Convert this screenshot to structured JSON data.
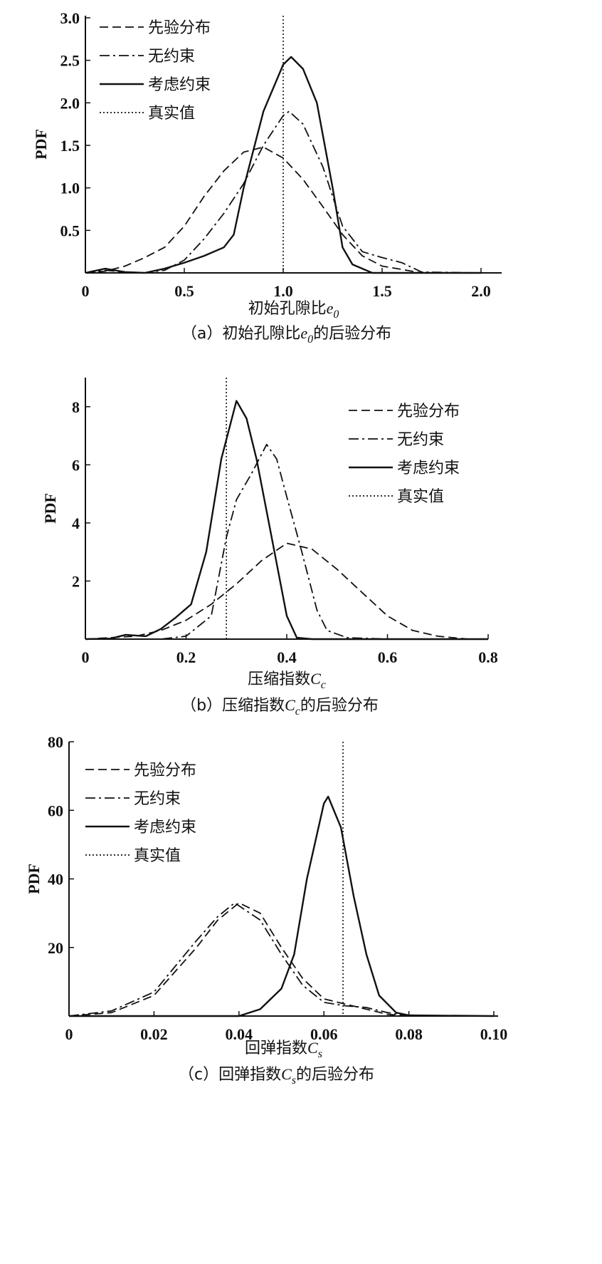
{
  "legend_labels": [
    "先验分布",
    "无约束",
    "考虑约束",
    "真实值"
  ],
  "chart_data": [
    {
      "type": "line",
      "panel": "a",
      "caption": {
        "prefix": "（a）",
        "text": "初始孔隙比",
        "sym": "e",
        "sub": "0",
        "suffix": "的后验分布"
      },
      "xlabel": {
        "text": "初始孔隙比",
        "sym": "e",
        "sub": "0"
      },
      "ylabel": "PDF",
      "xlim": [
        0,
        2.0
      ],
      "ylim": [
        0,
        3.0
      ],
      "xticks": [
        0,
        0.5,
        1.0,
        1.5,
        2.0
      ],
      "xtick_labels": [
        "0",
        "0.5",
        "1.0",
        "1.5",
        "2.0"
      ],
      "yticks": [
        0.5,
        1.0,
        1.5,
        2.0,
        2.5,
        3.0
      ],
      "ytick_labels": [
        "0.5",
        "1.0",
        "1.5",
        "2.0",
        "2.5",
        "3.0"
      ],
      "legend_position": "top-left",
      "true_value": 1.0,
      "series": [
        {
          "name": "先验分布",
          "style": "dashed",
          "x": [
            0,
            0.1,
            0.2,
            0.3,
            0.4,
            0.5,
            0.6,
            0.7,
            0.8,
            0.9,
            1.0,
            1.1,
            1.2,
            1.3,
            1.4,
            1.5,
            1.6,
            1.7,
            2.0
          ],
          "y": [
            0,
            0.02,
            0.08,
            0.18,
            0.3,
            0.55,
            0.9,
            1.2,
            1.42,
            1.48,
            1.35,
            1.1,
            0.78,
            0.45,
            0.2,
            0.08,
            0.04,
            0,
            0
          ]
        },
        {
          "name": "无约束",
          "style": "dashdot",
          "x": [
            0,
            0.1,
            0.2,
            0.3,
            0.4,
            0.5,
            0.6,
            0.7,
            0.8,
            0.9,
            1.0,
            1.03,
            1.1,
            1.2,
            1.3,
            1.4,
            1.5,
            1.6,
            1.7,
            2.0
          ],
          "y": [
            0,
            0.03,
            0.01,
            0,
            0.03,
            0.15,
            0.4,
            0.7,
            1.05,
            1.5,
            1.85,
            1.9,
            1.75,
            1.25,
            0.55,
            0.25,
            0.18,
            0.12,
            0.01,
            0
          ]
        },
        {
          "name": "考虑约束",
          "style": "solid",
          "x": [
            0,
            0.1,
            0.2,
            0.3,
            0.4,
            0.5,
            0.6,
            0.7,
            0.75,
            0.8,
            0.9,
            1.0,
            1.04,
            1.1,
            1.17,
            1.25,
            1.3,
            1.35,
            1.45,
            2.0
          ],
          "y": [
            0,
            0.05,
            0.01,
            0,
            0.05,
            0.12,
            0.2,
            0.3,
            0.45,
            1.0,
            1.9,
            2.45,
            2.54,
            2.4,
            2.0,
            1.0,
            0.3,
            0.1,
            0,
            0
          ]
        }
      ]
    },
    {
      "type": "line",
      "panel": "b",
      "caption": {
        "prefix": "（b）",
        "text": "压缩指数",
        "sym": "C",
        "sub": "c",
        "suffix": "的后验分布"
      },
      "xlabel": {
        "text": "压缩指数",
        "sym": "C",
        "sub": "c"
      },
      "ylabel": "PDF",
      "xlim": [
        0,
        0.8
      ],
      "ylim": [
        0,
        9
      ],
      "xticks": [
        0,
        0.2,
        0.4,
        0.6,
        0.8
      ],
      "xtick_labels": [
        "0",
        "0.2",
        "0.4",
        "0.6",
        "0.8"
      ],
      "yticks": [
        2,
        4,
        6,
        8
      ],
      "ytick_labels": [
        "2",
        "4",
        "6",
        "8"
      ],
      "legend_position": "top-right",
      "true_value": 0.28,
      "series": [
        {
          "name": "先验分布",
          "style": "dashed",
          "x": [
            0,
            0.1,
            0.15,
            0.2,
            0.25,
            0.3,
            0.35,
            0.4,
            0.45,
            0.5,
            0.55,
            0.6,
            0.65,
            0.7,
            0.76,
            0.8
          ],
          "y": [
            0,
            0.1,
            0.3,
            0.65,
            1.2,
            1.9,
            2.7,
            3.3,
            3.1,
            2.4,
            1.6,
            0.8,
            0.3,
            0.1,
            0,
            0
          ]
        },
        {
          "name": "无约束",
          "style": "dashdot",
          "x": [
            0,
            0.15,
            0.2,
            0.25,
            0.28,
            0.3,
            0.33,
            0.36,
            0.38,
            0.4,
            0.43,
            0.46,
            0.48,
            0.52,
            0.6,
            0.8
          ],
          "y": [
            0,
            0,
            0.1,
            0.8,
            3.5,
            4.8,
            5.7,
            6.7,
            6.2,
            4.9,
            3.0,
            1.0,
            0.3,
            0.05,
            0,
            0
          ]
        },
        {
          "name": "考虑约束",
          "style": "solid",
          "x": [
            0,
            0.05,
            0.08,
            0.12,
            0.15,
            0.18,
            0.21,
            0.24,
            0.27,
            0.3,
            0.32,
            0.34,
            0.37,
            0.4,
            0.42,
            0.45,
            0.8
          ],
          "y": [
            0,
            0.02,
            0.15,
            0.1,
            0.35,
            0.75,
            1.2,
            3.0,
            6.2,
            8.2,
            7.6,
            6.2,
            3.5,
            0.8,
            0.05,
            0,
            0
          ]
        }
      ]
    },
    {
      "type": "line",
      "panel": "c",
      "caption": {
        "prefix": "（c）",
        "text": "回弹指数",
        "sym": "C",
        "sub": "s",
        "suffix": "的后验分布"
      },
      "xlabel": {
        "text": "回弹指数",
        "sym": "C",
        "sub": "s"
      },
      "ylabel": "PDF",
      "xlim": [
        0,
        0.1
      ],
      "ylim": [
        0,
        80
      ],
      "xticks": [
        0,
        0.02,
        0.04,
        0.06,
        0.08,
        0.1
      ],
      "xtick_labels": [
        "0",
        "0.02",
        "0.04",
        "0.06",
        "0.08",
        "0.10"
      ],
      "yticks": [
        20,
        40,
        60,
        80
      ],
      "ytick_labels": [
        "20",
        "40",
        "60",
        "80"
      ],
      "legend_position": "top-left",
      "true_value": 0.0645,
      "series": [
        {
          "name": "先验分布",
          "style": "dashed",
          "x": [
            0,
            0.01,
            0.02,
            0.03,
            0.035,
            0.04,
            0.045,
            0.05,
            0.055,
            0.06,
            0.065,
            0.07,
            0.075,
            0.08,
            0.1
          ],
          "y": [
            0,
            1,
            6,
            20,
            28,
            33,
            30,
            20,
            11,
            5,
            3.5,
            2,
            0.5,
            0,
            0
          ]
        },
        {
          "name": "无约束",
          "style": "dashdot",
          "x": [
            0,
            0.01,
            0.02,
            0.03,
            0.035,
            0.039,
            0.045,
            0.05,
            0.055,
            0.06,
            0.065,
            0.07,
            0.075,
            0.08,
            0.1
          ],
          "y": [
            0,
            1.5,
            7,
            22,
            29,
            33,
            28,
            18,
            9,
            4,
            3,
            2.5,
            1,
            0,
            0
          ]
        },
        {
          "name": "考虑约束",
          "style": "solid",
          "x": [
            0,
            0.04,
            0.045,
            0.05,
            0.053,
            0.056,
            0.06,
            0.061,
            0.064,
            0.067,
            0.07,
            0.073,
            0.077,
            0.08,
            0.1
          ],
          "y": [
            0,
            0,
            2,
            8,
            18,
            40,
            62,
            64,
            55,
            35,
            18,
            6,
            1,
            0.2,
            0
          ]
        }
      ]
    }
  ]
}
